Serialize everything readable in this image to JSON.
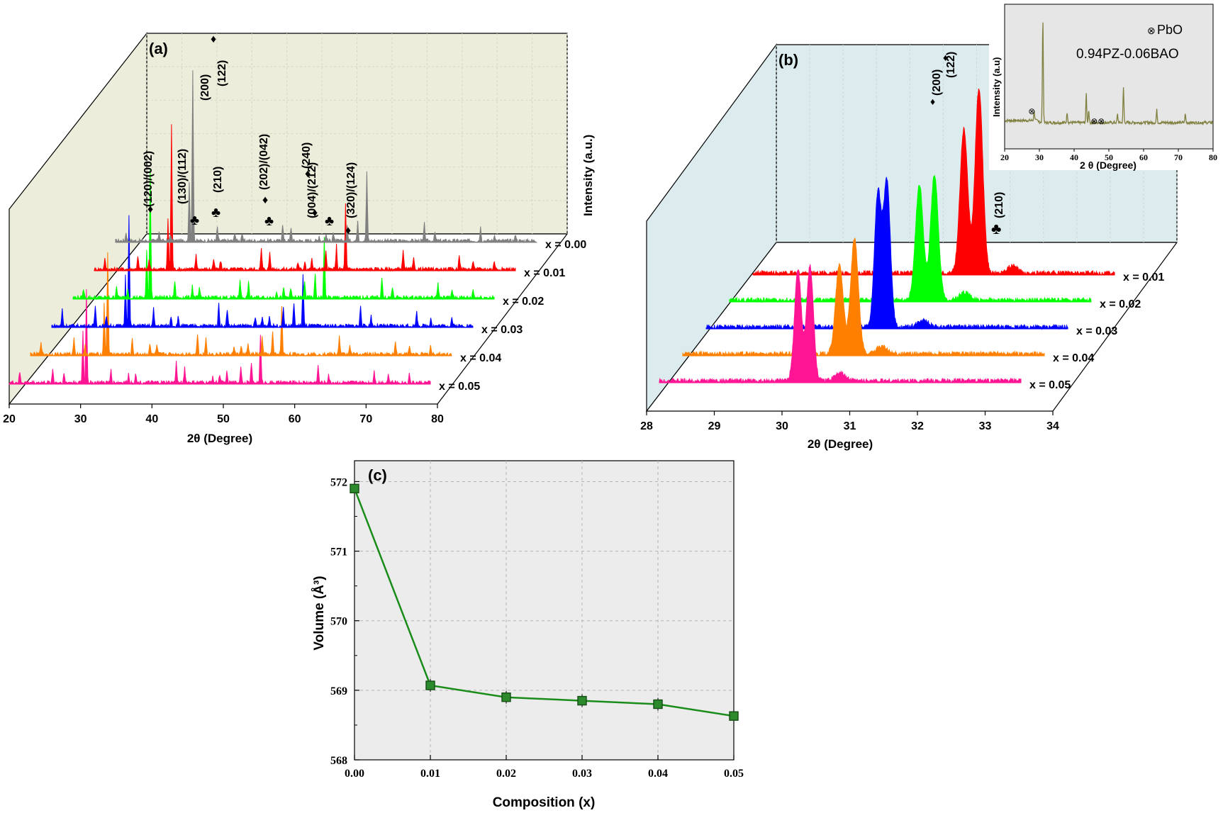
{
  "figure": {
    "panel_a": {
      "panel_label": "(a)",
      "xlabel": "2θ (Degree)",
      "zlabel": "Intensity (a.u.)",
      "xticks": [
        "20",
        "30",
        "40",
        "50",
        "60",
        "70",
        "80"
      ],
      "series_labels": [
        "x = 0.00",
        "x = 0.01",
        "x = 0.02",
        "x = 0.03",
        "x = 0.04",
        "x = 0.05"
      ],
      "peak_labels": [
        "(120)/(002)",
        "(130)/(112)",
        "(210)",
        "(200)",
        "(122)",
        "(202)/(042)",
        "(240)",
        "(004)/(212)",
        "(320)/(124)"
      ],
      "symbols": {
        "diamond": "♦",
        "club": "♣"
      }
    },
    "panel_b": {
      "panel_label": "(b)",
      "xlabel": "2θ (Degree)",
      "xticks": [
        "28",
        "29",
        "30",
        "31",
        "32",
        "33",
        "34"
      ],
      "series_labels": [
        "x = 0.01",
        "x = 0.02",
        "x = 0.03",
        "x = 0.04",
        "x = 0.05"
      ],
      "peak_labels": [
        "(200)",
        "(122)",
        "(210)"
      ],
      "symbols": {
        "diamond": "♦",
        "club": "♣"
      }
    },
    "inset": {
      "legend": "PbO",
      "title": "0.94PZ-0.06BAO",
      "xlabel": "2 θ (Degree)",
      "ylabel": "Intensity (a.u)",
      "xticks": [
        "20",
        "30",
        "40",
        "50",
        "60",
        "70",
        "80"
      ],
      "legend_marker": "⊗"
    },
    "panel_c": {
      "panel_label": "(c)",
      "xlabel": "Composition (x)",
      "ylabel": "Volume (Å³)",
      "xticks": [
        "0.00",
        "0.01",
        "0.02",
        "0.03",
        "0.04",
        "0.05"
      ],
      "yticks": [
        "568",
        "569",
        "570",
        "571",
        "572"
      ]
    }
  },
  "colors": {
    "x000": "#808080",
    "x001": "#ff0000",
    "x002": "#00ff00",
    "x003": "#0000ff",
    "x004": "#ff8000",
    "x005": "#ff1493",
    "wall_a": "#ededdc",
    "wall_b": "#dcebee",
    "plot_c": "#ececec",
    "line_c": "#1a8c1a",
    "inset_bg": "#e6e6e6",
    "inset_line": "#808040",
    "marker_diamond": "#1a8c1a"
  },
  "chart_data": [
    {
      "type": "line",
      "title": "",
      "xlabel": "2θ (Degree)",
      "ylabel": "Intensity (a.u.)",
      "xlim": [
        20,
        80
      ],
      "peaks_two_theta": [
        21.5,
        26.2,
        27.8,
        30.5,
        31.0,
        34.5,
        37.0,
        38.0,
        43.8,
        45.0,
        49.0,
        50.0,
        51.0,
        53.0,
        54.5,
        55.8,
        64.0,
        65.5,
        72.0,
        74.0,
        77.0
      ],
      "series": [
        {
          "name": "x = 0.00",
          "relative_intensity": [
            0.05,
            0.06,
            0.04,
            0.35,
            1.0,
            0.08,
            0.05,
            0.04,
            0.1,
            0.08,
            0.03,
            0.04,
            0.05,
            0.09,
            0.12,
            0.4,
            0.1,
            0.05,
            0.08,
            0.04,
            0.04
          ]
        },
        {
          "name": "x = 0.01",
          "relative_intensity": [
            0.06,
            0.08,
            0.05,
            0.3,
            0.85,
            0.09,
            0.06,
            0.05,
            0.12,
            0.1,
            0.04,
            0.05,
            0.06,
            0.1,
            0.14,
            0.38,
            0.12,
            0.06,
            0.09,
            0.05,
            0.05
          ]
        },
        {
          "name": "x = 0.02",
          "relative_intensity": [
            0.05,
            0.07,
            0.05,
            0.28,
            0.75,
            0.1,
            0.07,
            0.05,
            0.11,
            0.09,
            0.04,
            0.05,
            0.06,
            0.1,
            0.14,
            0.35,
            0.12,
            0.06,
            0.09,
            0.05,
            0.05
          ]
        },
        {
          "name": "x = 0.03",
          "relative_intensity": [
            0.1,
            0.12,
            0.06,
            0.3,
            0.65,
            0.1,
            0.06,
            0.05,
            0.13,
            0.1,
            0.04,
            0.05,
            0.06,
            0.11,
            0.14,
            0.3,
            0.12,
            0.06,
            0.08,
            0.05,
            0.05
          ]
        },
        {
          "name": "x = 0.04",
          "relative_intensity": [
            0.08,
            0.1,
            0.05,
            0.3,
            0.6,
            0.09,
            0.06,
            0.05,
            0.12,
            0.1,
            0.04,
            0.05,
            0.06,
            0.1,
            0.13,
            0.28,
            0.11,
            0.06,
            0.08,
            0.05,
            0.05
          ]
        },
        {
          "name": "x = 0.05",
          "relative_intensity": [
            0.06,
            0.08,
            0.05,
            0.3,
            0.55,
            0.08,
            0.05,
            0.05,
            0.12,
            0.09,
            0.04,
            0.05,
            0.06,
            0.1,
            0.12,
            0.28,
            0.1,
            0.05,
            0.07,
            0.05,
            0.05
          ]
        }
      ]
    },
    {
      "type": "area",
      "title": "",
      "xlabel": "2θ (Degree)",
      "xlim": [
        28,
        34
      ],
      "series": [
        {
          "name": "x = 0.01",
          "peaks": [
            {
              "center": 31.5,
              "height": 0.78,
              "width": 0.09
            },
            {
              "center": 31.75,
              "height": 1.0,
              "width": 0.09
            },
            {
              "center": 32.3,
              "height": 0.04,
              "width": 0.12
            }
          ]
        },
        {
          "name": "x = 0.02",
          "peaks": [
            {
              "center": 31.15,
              "height": 0.63,
              "width": 0.09
            },
            {
              "center": 31.4,
              "height": 0.68,
              "width": 0.09
            },
            {
              "center": 31.9,
              "height": 0.04,
              "width": 0.12
            }
          ]
        },
        {
          "name": "x = 0.03",
          "peaks": [
            {
              "center": 30.85,
              "height": 0.72,
              "width": 0.08
            },
            {
              "center": 31.0,
              "height": 0.78,
              "width": 0.08
            },
            {
              "center": 31.6,
              "height": 0.04,
              "width": 0.12
            }
          ]
        },
        {
          "name": "x = 0.04",
          "peaks": [
            {
              "center": 30.6,
              "height": 0.48,
              "width": 0.09
            },
            {
              "center": 30.85,
              "height": 0.62,
              "width": 0.09
            },
            {
              "center": 31.3,
              "height": 0.04,
              "width": 0.12
            }
          ]
        },
        {
          "name": "x = 0.05",
          "peaks": [
            {
              "center": 30.3,
              "height": 0.6,
              "width": 0.08
            },
            {
              "center": 30.5,
              "height": 0.62,
              "width": 0.08
            },
            {
              "center": 31.0,
              "height": 0.04,
              "width": 0.12
            }
          ]
        }
      ]
    },
    {
      "type": "line",
      "title": "0.94PZ-0.06BAO",
      "xlabel": "2 θ (Degree)",
      "ylabel": "Intensity (a.u)",
      "xlim": [
        20,
        80
      ],
      "peaks": [
        {
          "x": 28.5,
          "h": 0.1
        },
        {
          "x": 31.0,
          "h": 1.0
        },
        {
          "x": 38.0,
          "h": 0.1
        },
        {
          "x": 43.5,
          "h": 0.28
        },
        {
          "x": 44.2,
          "h": 0.12
        },
        {
          "x": 52.5,
          "h": 0.08
        },
        {
          "x": 54.2,
          "h": 0.33
        },
        {
          "x": 63.8,
          "h": 0.12
        },
        {
          "x": 72.0,
          "h": 0.08
        }
      ],
      "pbo_marker_x": [
        28.0,
        46.0,
        48.0
      ]
    },
    {
      "type": "line",
      "title": "",
      "xlabel": "Composition (x)",
      "ylabel": "Volume (Å³)",
      "x": [
        0.0,
        0.01,
        0.02,
        0.03,
        0.04,
        0.05
      ],
      "y": [
        571.9,
        569.07,
        568.9,
        568.85,
        568.8,
        568.63
      ],
      "xlim": [
        0.0,
        0.05
      ],
      "ylim": [
        568,
        572.3
      ],
      "grid": true
    }
  ]
}
